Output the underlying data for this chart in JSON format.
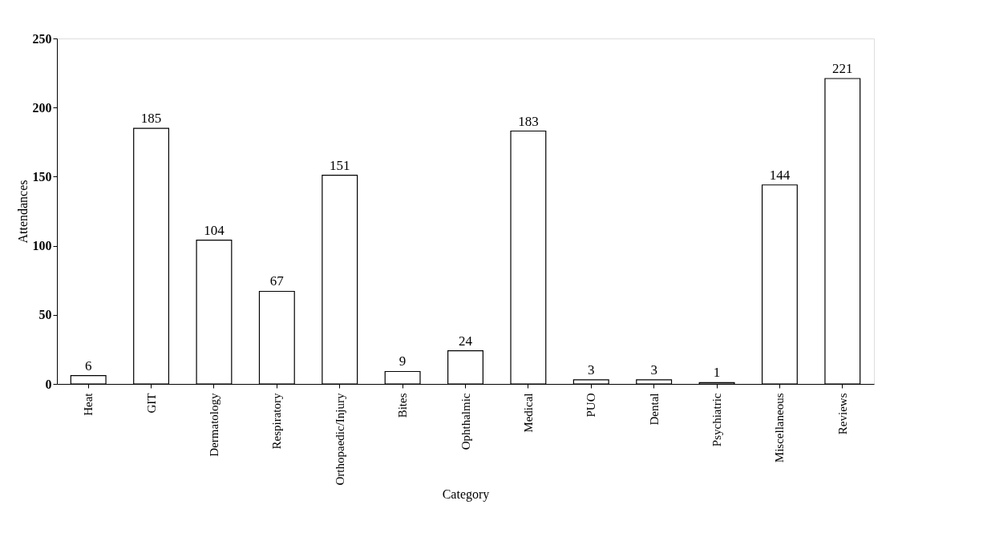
{
  "chart_data": {
    "type": "bar",
    "xlabel": "Category",
    "ylabel": "Attendances",
    "categories": [
      "Heat",
      "GIT",
      "Dermatology",
      "Respiratory",
      "Orthopaedic/Injury",
      "Bites",
      "Ophthalmic",
      "Medical",
      "PUO",
      "Dental",
      "Psychiatric",
      "Miscellaneous",
      "Reviews"
    ],
    "values": [
      6,
      185,
      104,
      67,
      151,
      9,
      24,
      183,
      3,
      3,
      1,
      144,
      221
    ],
    "color": "#ffffff",
    "ylim": [
      0,
      250
    ],
    "yticks": [
      0,
      50,
      100,
      150,
      200,
      250
    ],
    "grid": false,
    "data_labels": true
  }
}
